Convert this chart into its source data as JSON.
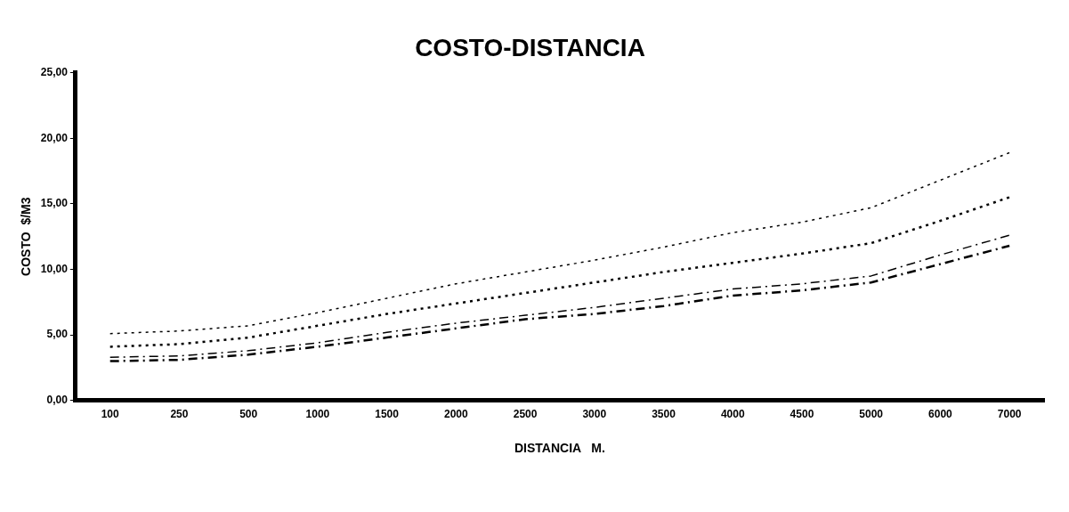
{
  "chart_data": {
    "type": "line",
    "title": "COSTO-DISTANCIA",
    "xlabel": "DISTANCIA   M.",
    "ylabel": "COSTO  $/M3",
    "categories": [
      "100",
      "250",
      "500",
      "1000",
      "1500",
      "2000",
      "2500",
      "3000",
      "3500",
      "4000",
      "4500",
      "5000",
      "6000",
      "7000"
    ],
    "ylim": [
      0,
      25
    ],
    "yticks": [
      {
        "value": 0,
        "label": "0,00"
      },
      {
        "value": 5,
        "label": "5,00"
      },
      {
        "value": 10,
        "label": "10,00"
      },
      {
        "value": 15,
        "label": "15,00"
      },
      {
        "value": 20,
        "label": "20,00"
      },
      {
        "value": 25,
        "label": "25,00"
      }
    ],
    "grid": false,
    "legend": false,
    "marker": "none",
    "series": [
      {
        "color": "#000000",
        "line_style": "dotted",
        "values": [
          5.1,
          5.3,
          5.7,
          6.7,
          7.8,
          8.9,
          9.8,
          10.7,
          11.7,
          12.8,
          13.6,
          14.7,
          16.8,
          18.9
        ]
      },
      {
        "color": "#000000",
        "line_style": "dotted",
        "values": [
          4.1,
          4.3,
          4.8,
          5.7,
          6.6,
          7.4,
          8.2,
          9.0,
          9.8,
          10.5,
          11.2,
          12.0,
          13.7,
          15.5
        ]
      },
      {
        "color": "#000000",
        "line_style": "dashed",
        "values": [
          3.3,
          3.4,
          3.8,
          4.4,
          5.2,
          5.9,
          6.5,
          7.1,
          7.8,
          8.5,
          8.9,
          9.5,
          11.1,
          12.6
        ]
      },
      {
        "color": "#000000",
        "line_style": "dashed",
        "values": [
          3.0,
          3.1,
          3.5,
          4.1,
          4.8,
          5.5,
          6.2,
          6.6,
          7.2,
          8.0,
          8.4,
          9.0,
          10.4,
          11.8
        ]
      }
    ]
  }
}
